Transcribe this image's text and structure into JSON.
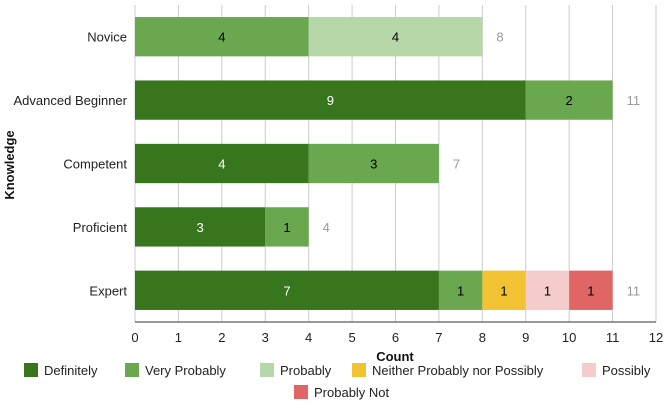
{
  "chart_data": {
    "type": "bar",
    "orientation": "horizontal",
    "stacked": true,
    "categories": [
      "Novice",
      "Advanced Beginner",
      "Competent",
      "Proficient",
      "Expert"
    ],
    "series": [
      {
        "name": "Definitely",
        "color": "#38761d",
        "values": [
          0,
          9,
          4,
          3,
          7
        ]
      },
      {
        "name": "Very Probably",
        "color": "#6aa84f",
        "values": [
          4,
          2,
          3,
          1,
          1
        ]
      },
      {
        "name": "Probably",
        "color": "#b6d7a8",
        "values": [
          4,
          0,
          0,
          0,
          0
        ]
      },
      {
        "name": "Neither Probably nor Possibly",
        "color": "#f1c232",
        "values": [
          0,
          0,
          0,
          0,
          1
        ]
      },
      {
        "name": "Possibly",
        "color": "#f4cccc",
        "values": [
          0,
          0,
          0,
          0,
          1
        ]
      },
      {
        "name": "Probably Not",
        "color": "#e06666",
        "values": [
          0,
          0,
          0,
          0,
          1
        ]
      }
    ],
    "totals": [
      8,
      11,
      7,
      4,
      11
    ],
    "xlabel": "Count",
    "ylabel": "Knowledge",
    "xlim": [
      0,
      12
    ],
    "xticks": [
      0,
      1,
      2,
      3,
      4,
      5,
      6,
      7,
      8,
      9,
      10,
      11,
      12
    ],
    "grid": true,
    "legend_position": "bottom"
  }
}
